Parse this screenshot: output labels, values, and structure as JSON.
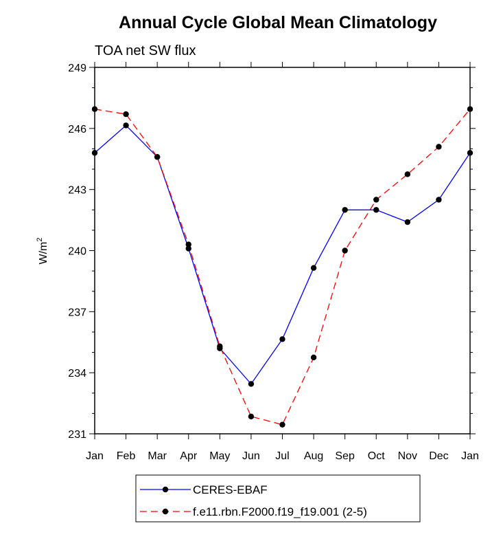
{
  "chart_data": {
    "type": "line",
    "title": "Annual Cycle Global Mean Climatology",
    "subtitle": "TOA net SW flux",
    "ylabel": "W/m",
    "ylabel_superscript": "2",
    "ylim": [
      231,
      249
    ],
    "yticks": [
      "231",
      "234",
      "237",
      "240",
      "243",
      "246",
      "249"
    ],
    "categories": [
      "Jan",
      "Feb",
      "Mar",
      "Apr",
      "May",
      "Jun",
      "Jul",
      "Aug",
      "Sep",
      "Oct",
      "Nov",
      "Dec",
      "Jan"
    ],
    "grid": false,
    "legend_position": "bottom",
    "series": [
      {
        "name": "CERES-EBAF",
        "color": "#0000ff",
        "dash": "solid",
        "values": [
          244.8,
          246.15,
          244.6,
          240.1,
          235.2,
          233.45,
          235.65,
          239.15,
          242.0,
          242.0,
          241.4,
          242.5,
          244.8
        ]
      },
      {
        "name": "f.e11.rbn.F2000.f19_f19.001 (2-5)",
        "color": "#ff0000",
        "dash": "dashed",
        "values": [
          246.95,
          246.7,
          244.6,
          240.3,
          235.3,
          231.85,
          231.45,
          234.75,
          240.0,
          242.5,
          243.75,
          245.1,
          246.95
        ]
      }
    ]
  }
}
